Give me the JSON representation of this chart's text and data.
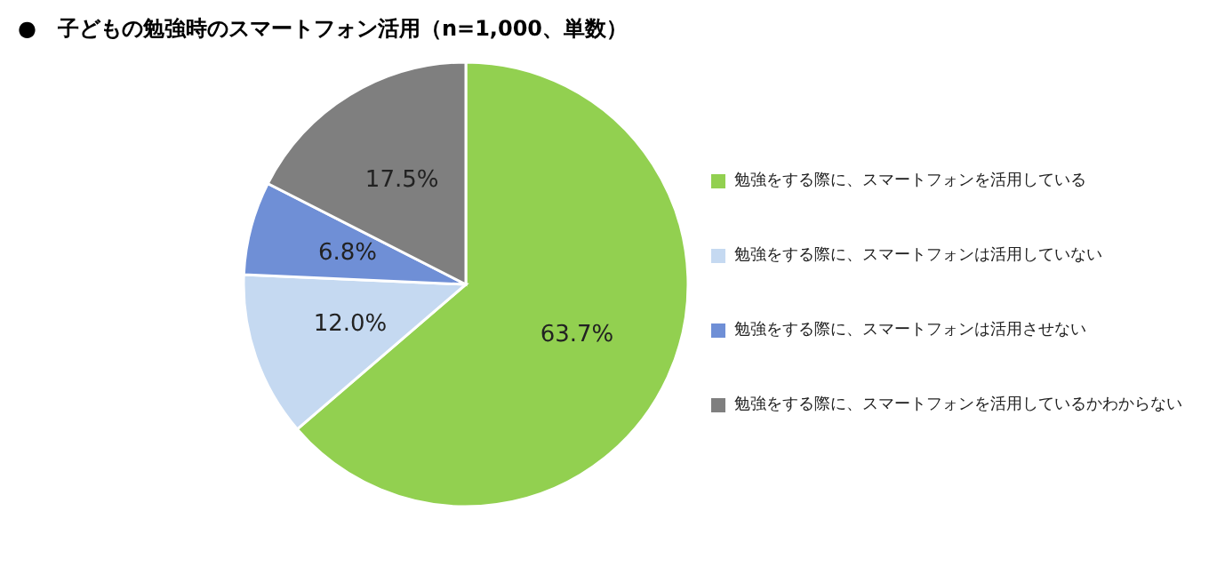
{
  "chart_data": {
    "type": "pie",
    "title": "●　子どもの勉強時のスマートフォン活用（n=1,000、単数）",
    "categories": [
      "勉強をする際に、スマートフォンを活用している",
      "勉強をする際に、スマートフォンは活用していない",
      "勉強をする際に、スマートフォンは活用させない",
      "勉強をする際に、スマートフォンを活用しているかわからない"
    ],
    "values": [
      63.7,
      12.0,
      6.8,
      17.5
    ],
    "value_labels": [
      "63.7%",
      "12.0%",
      "6.8%",
      "17.5%"
    ],
    "colors": [
      "#92d050",
      "#c5d9f1",
      "#6f8fd6",
      "#7f7f7f"
    ],
    "legend": "right"
  }
}
